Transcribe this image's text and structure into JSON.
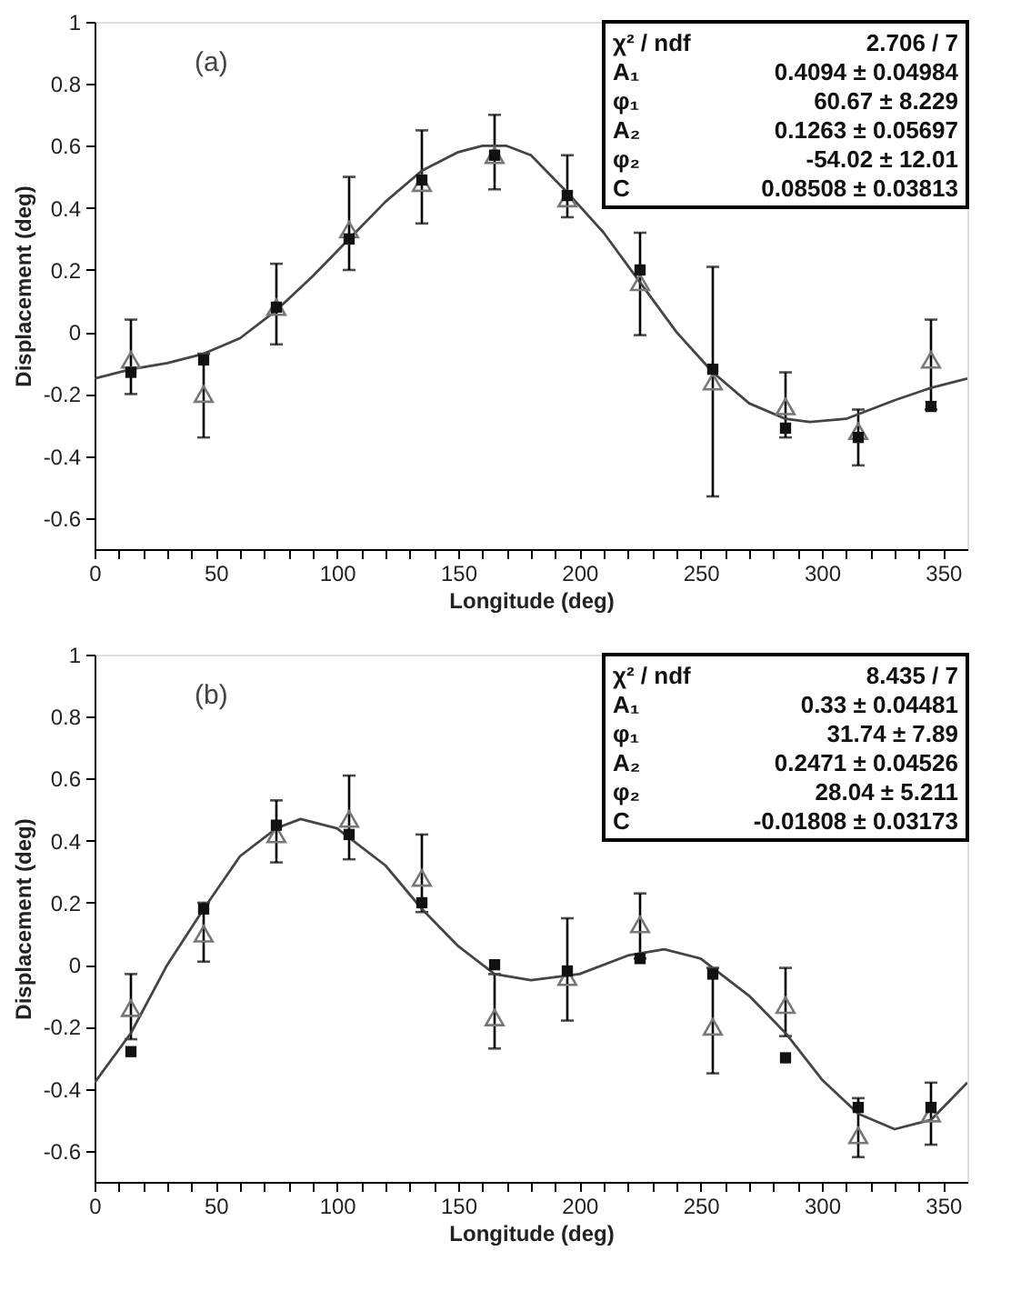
{
  "chart_data": [
    {
      "type": "scatter",
      "xlabel": "Longitude (deg)",
      "ylabel": "Displacement (deg)",
      "x": [
        15,
        45,
        75,
        105,
        135,
        165,
        195,
        225,
        255,
        285,
        315,
        345
      ],
      "xlim": [
        0,
        360
      ],
      "ylim": [
        -0.7,
        1
      ],
      "xticks": [
        0,
        {
          "value": 10,
          "label": null
        },
        {
          "value": 20,
          "label": null
        },
        {
          "value": 30,
          "label": null
        },
        {
          "value": 40,
          "label": null
        },
        50,
        {
          "value": 60,
          "label": null
        },
        {
          "value": 70,
          "label": null
        },
        {
          "value": 80,
          "label": null
        },
        {
          "value": 90,
          "label": null
        },
        100,
        {
          "value": 110,
          "label": null
        },
        {
          "value": 120,
          "label": null
        },
        {
          "value": 130,
          "label": null
        },
        {
          "value": 140,
          "label": null
        },
        150,
        {
          "value": 160,
          "label": null
        },
        {
          "value": 170,
          "label": null
        },
        {
          "value": 180,
          "label": null
        },
        {
          "value": 190,
          "label": null
        },
        200,
        {
          "value": 210,
          "label": null
        },
        {
          "value": 220,
          "label": null
        },
        {
          "value": 230,
          "label": null
        },
        {
          "value": 240,
          "label": null
        },
        250,
        {
          "value": 260,
          "label": null
        },
        {
          "value": 270,
          "label": null
        },
        {
          "value": 280,
          "label": null
        },
        {
          "value": 290,
          "label": null
        },
        300,
        {
          "value": 310,
          "label": null
        },
        {
          "value": 320,
          "label": null
        },
        {
          "value": 330,
          "label": null
        },
        {
          "value": 340,
          "label": null
        },
        350
      ],
      "yticks": [
        -0.6,
        -0.4,
        -0.2,
        0,
        0.2,
        0.4,
        0.6,
        0.8,
        1
      ],
      "annotations": [
        "(a)",
        "χ² / ndf",
        "2.706 / 7",
        "A₁",
        "0.4094 ± 0.04984",
        "φ₁",
        "60.67 ± 8.229",
        "A₂",
        "0.1263 ± 0.05697",
        "φ₂",
        "-54.02 ± 12.01",
        "C",
        "0.08508 ± 0.03813"
      ],
      "series": [
        {
          "color": "#111111",
          "marker": "square",
          "values": [
            -0.13,
            -0.09,
            0.08,
            0.3,
            0.49,
            0.57,
            0.44,
            0.2,
            -0.12,
            -0.31,
            -0.34,
            -0.24
          ]
        },
        {
          "color": "#777777",
          "marker": "triangle",
          "values": [
            -0.09,
            -0.2,
            0.08,
            0.33,
            0.48,
            0.57,
            0.43,
            0.16,
            -0.16,
            -0.24,
            -0.32,
            -0.09
          ],
          "errors": [
            [
              -0.2,
              0.04
            ],
            [
              -0.34,
              -0.07
            ],
            [
              -0.04,
              0.22
            ],
            [
              0.2,
              0.5
            ],
            [
              0.35,
              0.65
            ],
            [
              0.46,
              0.7
            ],
            [
              0.37,
              0.57
            ],
            [
              -0.01,
              0.32
            ],
            [
              -0.53,
              0.21
            ],
            [
              -0.34,
              -0.13
            ],
            [
              -0.43,
              -0.25
            ],
            [
              -0.25,
              0.04
            ]
          ]
        },
        {
          "type": "line",
          "color": "#444444",
          "x": [
            0,
            15,
            30,
            45,
            60,
            75,
            90,
            105,
            120,
            135,
            150,
            160,
            170,
            180,
            195,
            210,
            225,
            240,
            255,
            270,
            285,
            295,
            310,
            330,
            345,
            360
          ],
          "values": [
            -0.15,
            -0.12,
            -0.1,
            -0.07,
            -0.02,
            0.07,
            0.18,
            0.3,
            0.42,
            0.52,
            0.58,
            0.6,
            0.6,
            0.57,
            0.45,
            0.32,
            0.16,
            0.0,
            -0.13,
            -0.23,
            -0.28,
            -0.29,
            -0.28,
            -0.22,
            -0.18,
            -0.15
          ]
        }
      ]
    },
    {
      "type": "scatter",
      "xlabel": "Longitude (deg)",
      "ylabel": "Displacement (deg)",
      "x": [
        15,
        45,
        75,
        105,
        135,
        165,
        195,
        225,
        255,
        285,
        315,
        345
      ],
      "xlim": [
        0,
        360
      ],
      "ylim": [
        -0.7,
        1
      ],
      "xticks": [
        0,
        {
          "value": 10,
          "label": null
        },
        {
          "value": 20,
          "label": null
        },
        {
          "value": 30,
          "label": null
        },
        {
          "value": 40,
          "label": null
        },
        50,
        {
          "value": 60,
          "label": null
        },
        {
          "value": 70,
          "label": null
        },
        {
          "value": 80,
          "label": null
        },
        {
          "value": 90,
          "label": null
        },
        100,
        {
          "value": 110,
          "label": null
        },
        {
          "value": 120,
          "label": null
        },
        {
          "value": 130,
          "label": null
        },
        {
          "value": 140,
          "label": null
        },
        150,
        {
          "value": 160,
          "label": null
        },
        {
          "value": 170,
          "label": null
        },
        {
          "value": 180,
          "label": null
        },
        {
          "value": 190,
          "label": null
        },
        200,
        {
          "value": 210,
          "label": null
        },
        {
          "value": 220,
          "label": null
        },
        {
          "value": 230,
          "label": null
        },
        {
          "value": 240,
          "label": null
        },
        250,
        {
          "value": 260,
          "label": null
        },
        {
          "value": 270,
          "label": null
        },
        {
          "value": 280,
          "label": null
        },
        {
          "value": 290,
          "label": null
        },
        300,
        {
          "value": 310,
          "label": null
        },
        {
          "value": 320,
          "label": null
        },
        {
          "value": 330,
          "label": null
        },
        {
          "value": 340,
          "label": null
        },
        350
      ],
      "yticks": [
        -0.6,
        -0.4,
        -0.2,
        0,
        0.2,
        0.4,
        0.6,
        0.8,
        1
      ],
      "annotations": [
        "(b)",
        "χ² / ndf",
        "8.435 / 7",
        "A₁",
        "0.33 ± 0.04481",
        "φ₁",
        "31.74 ± 7.89",
        "A₂",
        "0.2471 ± 0.04526",
        "φ₂",
        "28.04 ± 5.211",
        "C",
        "-0.01808 ± 0.03173"
      ],
      "series": [
        {
          "color": "#111111",
          "marker": "square",
          "values": [
            -0.28,
            0.18,
            0.45,
            0.42,
            0.2,
            0.0,
            -0.02,
            0.02,
            -0.03,
            -0.3,
            -0.46,
            -0.46
          ]
        },
        {
          "color": "#777777",
          "marker": "triangle",
          "values": [
            -0.14,
            0.1,
            0.42,
            0.47,
            0.28,
            -0.17,
            -0.04,
            0.13,
            -0.2,
            -0.13,
            -0.55,
            -0.48
          ],
          "errors": [
            [
              -0.24,
              -0.03
            ],
            [
              0.01,
              0.2
            ],
            [
              0.33,
              0.53
            ],
            [
              0.34,
              0.61
            ],
            [
              0.17,
              0.42
            ],
            [
              -0.27,
              -0.03
            ],
            [
              -0.18,
              0.15
            ],
            [
              0.02,
              0.23
            ],
            [
              -0.35,
              -0.01
            ],
            [
              -0.23,
              -0.01
            ],
            [
              -0.62,
              -0.43
            ],
            [
              -0.58,
              -0.38
            ]
          ]
        },
        {
          "type": "line",
          "color": "#444444",
          "x": [
            0,
            15,
            30,
            45,
            60,
            75,
            85,
            100,
            120,
            135,
            150,
            165,
            180,
            200,
            220,
            235,
            250,
            270,
            285,
            300,
            315,
            330,
            345,
            360
          ],
          "values": [
            -0.38,
            -0.22,
            0.0,
            0.18,
            0.35,
            0.44,
            0.47,
            0.44,
            0.32,
            0.18,
            0.06,
            -0.03,
            -0.05,
            -0.03,
            0.03,
            0.05,
            0.02,
            -0.1,
            -0.22,
            -0.37,
            -0.48,
            -0.53,
            -0.5,
            -0.38
          ]
        }
      ]
    }
  ]
}
